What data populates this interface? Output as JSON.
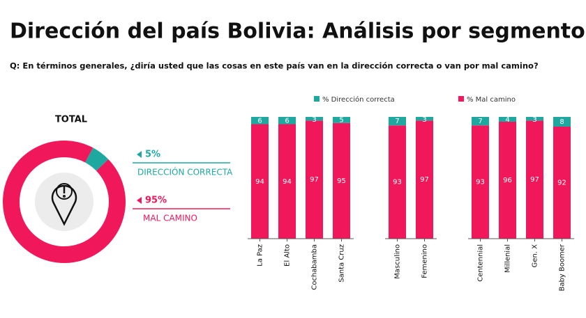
{
  "title": "Dirección del país Bolivia: Análisis por segmento",
  "question": "Q: En términos generales, ¿diría usted que las cosas en este país van en la dirección correcta o van por mal camino?",
  "chart_data": [
    {
      "type": "pie",
      "title": "TOTAL",
      "categories": [
        "DIRECCIÓN CORRECTA",
        "MAL CAMINO"
      ],
      "values": [
        5,
        95
      ],
      "value_labels": [
        "5%",
        "95%"
      ],
      "colors": [
        "#1fa8a0",
        "#f0185a"
      ]
    },
    {
      "type": "stacked-bar",
      "categories": [
        "La Paz",
        "El Alto",
        "Cochabamba",
        "Santa Cruz",
        "Masculino",
        "Femenino",
        "Centennial",
        "Millenial",
        "Gen. X",
        "Baby Boomer"
      ],
      "series": [
        {
          "name": "% Dirección correcta",
          "color": "#1fa8a0",
          "values": [
            6,
            6,
            3,
            5,
            7,
            3,
            7,
            4,
            3,
            8
          ]
        },
        {
          "name": "% Mal camino",
          "color": "#f0185a",
          "values": [
            94,
            94,
            97,
            95,
            93,
            97,
            93,
            96,
            97,
            92
          ]
        }
      ],
      "ylim": [
        0,
        100
      ]
    }
  ]
}
